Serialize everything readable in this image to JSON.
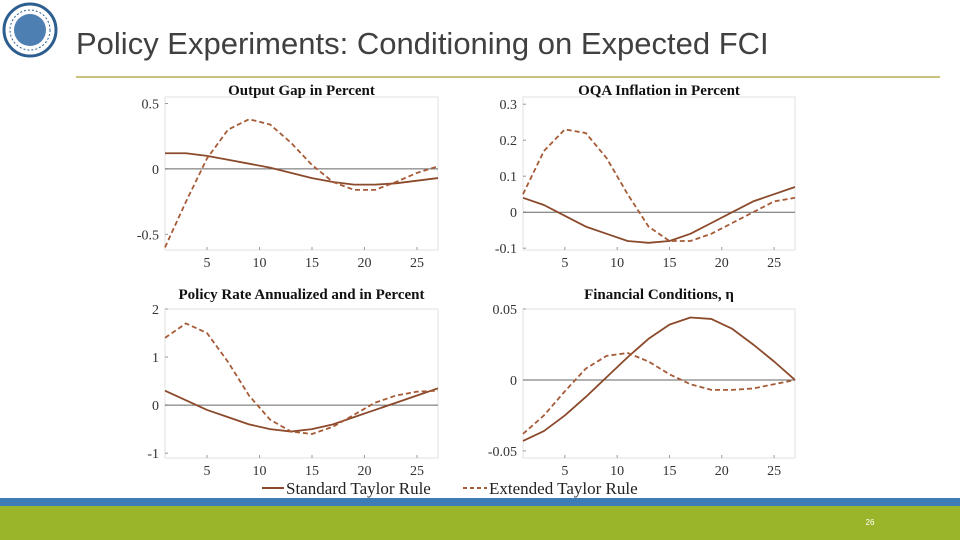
{
  "slide": {
    "title": "Policy Experiments: Conditioning on Expected FCI",
    "page_number": "26"
  },
  "chart_data": [
    {
      "type": "line",
      "title": "Output Gap in Percent",
      "x": [
        1,
        3,
        5,
        7,
        9,
        11,
        13,
        15,
        17,
        19,
        21,
        23,
        25,
        27
      ],
      "xlim": [
        1,
        27
      ],
      "xticks": [
        5,
        10,
        15,
        20,
        25
      ],
      "ylim": [
        -0.62,
        0.55
      ],
      "yticks": [
        0.5,
        0,
        -0.5
      ],
      "series": [
        {
          "name": "Standard Taylor Rule",
          "color": "#8b4a2b",
          "dash": "solid",
          "values": [
            0.12,
            0.12,
            0.1,
            0.07,
            0.04,
            0.01,
            -0.03,
            -0.07,
            -0.1,
            -0.12,
            -0.12,
            -0.11,
            -0.09,
            -0.07
          ]
        },
        {
          "name": "Extended Taylor Rule",
          "color": "#a65b37",
          "dash": "dashed",
          "values": [
            -0.6,
            -0.25,
            0.08,
            0.3,
            0.38,
            0.34,
            0.2,
            0.03,
            -0.1,
            -0.16,
            -0.16,
            -0.1,
            -0.03,
            0.02
          ]
        }
      ]
    },
    {
      "type": "line",
      "title": "OQA Inflation in Percent",
      "x": [
        1,
        3,
        5,
        7,
        9,
        11,
        13,
        15,
        17,
        19,
        21,
        23,
        25,
        27
      ],
      "xlim": [
        1,
        27
      ],
      "xticks": [
        5,
        10,
        15,
        20,
        25
      ],
      "ylim": [
        -0.105,
        0.32
      ],
      "yticks": [
        0.3,
        0.2,
        0.1,
        0,
        -0.1
      ],
      "series": [
        {
          "name": "Standard Taylor Rule",
          "color": "#8b4a2b",
          "dash": "solid",
          "values": [
            0.04,
            0.02,
            -0.01,
            -0.04,
            -0.06,
            -0.08,
            -0.085,
            -0.08,
            -0.06,
            -0.03,
            0.0,
            0.03,
            0.05,
            0.07
          ]
        },
        {
          "name": "Extended Taylor Rule",
          "color": "#a65b37",
          "dash": "dashed",
          "values": [
            0.05,
            0.17,
            0.23,
            0.22,
            0.15,
            0.05,
            -0.04,
            -0.08,
            -0.08,
            -0.06,
            -0.03,
            0.0,
            0.03,
            0.04
          ]
        }
      ]
    },
    {
      "type": "line",
      "title": "Policy Rate Annualized and in Percent",
      "x": [
        1,
        3,
        5,
        7,
        9,
        11,
        13,
        15,
        17,
        19,
        21,
        23,
        25,
        27
      ],
      "xlim": [
        1,
        27
      ],
      "xticks": [
        5,
        10,
        15,
        20,
        25
      ],
      "ylim": [
        -1.1,
        2
      ],
      "yticks": [
        2,
        1,
        0,
        -1
      ],
      "series": [
        {
          "name": "Standard Taylor Rule",
          "color": "#8b4a2b",
          "dash": "solid",
          "values": [
            0.3,
            0.1,
            -0.1,
            -0.25,
            -0.4,
            -0.5,
            -0.55,
            -0.5,
            -0.4,
            -0.25,
            -0.1,
            0.05,
            0.2,
            0.35
          ]
        },
        {
          "name": "Extended Taylor Rule",
          "color": "#a65b37",
          "dash": "dashed",
          "values": [
            1.4,
            1.7,
            1.5,
            0.9,
            0.2,
            -0.3,
            -0.55,
            -0.6,
            -0.45,
            -0.2,
            0.05,
            0.2,
            0.28,
            0.3
          ]
        }
      ]
    },
    {
      "type": "line",
      "title": "Financial Conditions, η",
      "x": [
        1,
        3,
        5,
        7,
        9,
        11,
        13,
        15,
        17,
        19,
        21,
        23,
        25,
        27
      ],
      "xlim": [
        1,
        27
      ],
      "xticks": [
        5,
        10,
        15,
        20,
        25
      ],
      "ylim": [
        -0.055,
        0.05
      ],
      "yticks": [
        0.05,
        0,
        -0.05
      ],
      "series": [
        {
          "name": "Standard Taylor Rule",
          "color": "#8b4a2b",
          "dash": "solid",
          "values": [
            -0.043,
            -0.036,
            -0.025,
            -0.012,
            0.002,
            0.016,
            0.029,
            0.039,
            0.044,
            0.043,
            0.036,
            0.025,
            0.013,
            0.0
          ]
        },
        {
          "name": "Extended Taylor Rule",
          "color": "#a65b37",
          "dash": "dashed",
          "values": [
            -0.038,
            -0.025,
            -0.008,
            0.008,
            0.017,
            0.019,
            0.013,
            0.004,
            -0.003,
            -0.007,
            -0.007,
            -0.006,
            -0.003,
            0.0
          ]
        }
      ]
    }
  ]
}
